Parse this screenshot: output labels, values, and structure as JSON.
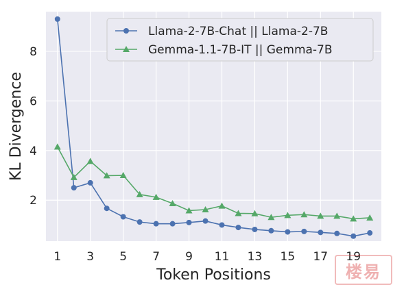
{
  "chart_data": {
    "type": "line",
    "xlabel": "Token Positions",
    "ylabel": "KL Divergence",
    "xlim": [
      0.3,
      20.7
    ],
    "ylim": [
      0.35,
      9.6
    ],
    "xticks": [
      1,
      3,
      5,
      7,
      9,
      11,
      13,
      15,
      17,
      19
    ],
    "yticks": [
      2,
      4,
      6,
      8
    ],
    "grid": true,
    "legend_position": "top-right",
    "x": [
      1,
      2,
      3,
      4,
      5,
      6,
      7,
      8,
      9,
      10,
      11,
      12,
      13,
      14,
      15,
      16,
      17,
      18,
      19,
      20
    ],
    "series": [
      {
        "name": "Llama-2-7B-Chat || Llama-2-7B",
        "color": "#4c72b0",
        "marker": "circle",
        "values": [
          9.3,
          2.5,
          2.7,
          1.67,
          1.33,
          1.12,
          1.05,
          1.05,
          1.1,
          1.16,
          1.0,
          0.9,
          0.82,
          0.77,
          0.72,
          0.74,
          0.7,
          0.66,
          0.55,
          0.68
        ]
      },
      {
        "name": "Gemma-1.1-7B-IT || Gemma-7B",
        "color": "#55a868",
        "marker": "triangle",
        "values": [
          4.15,
          2.92,
          3.57,
          2.99,
          3.0,
          2.23,
          2.12,
          1.87,
          1.58,
          1.62,
          1.77,
          1.47,
          1.46,
          1.31,
          1.39,
          1.42,
          1.36,
          1.36,
          1.25,
          1.29
        ]
      }
    ]
  },
  "watermark": {
    "text": "楼易"
  }
}
